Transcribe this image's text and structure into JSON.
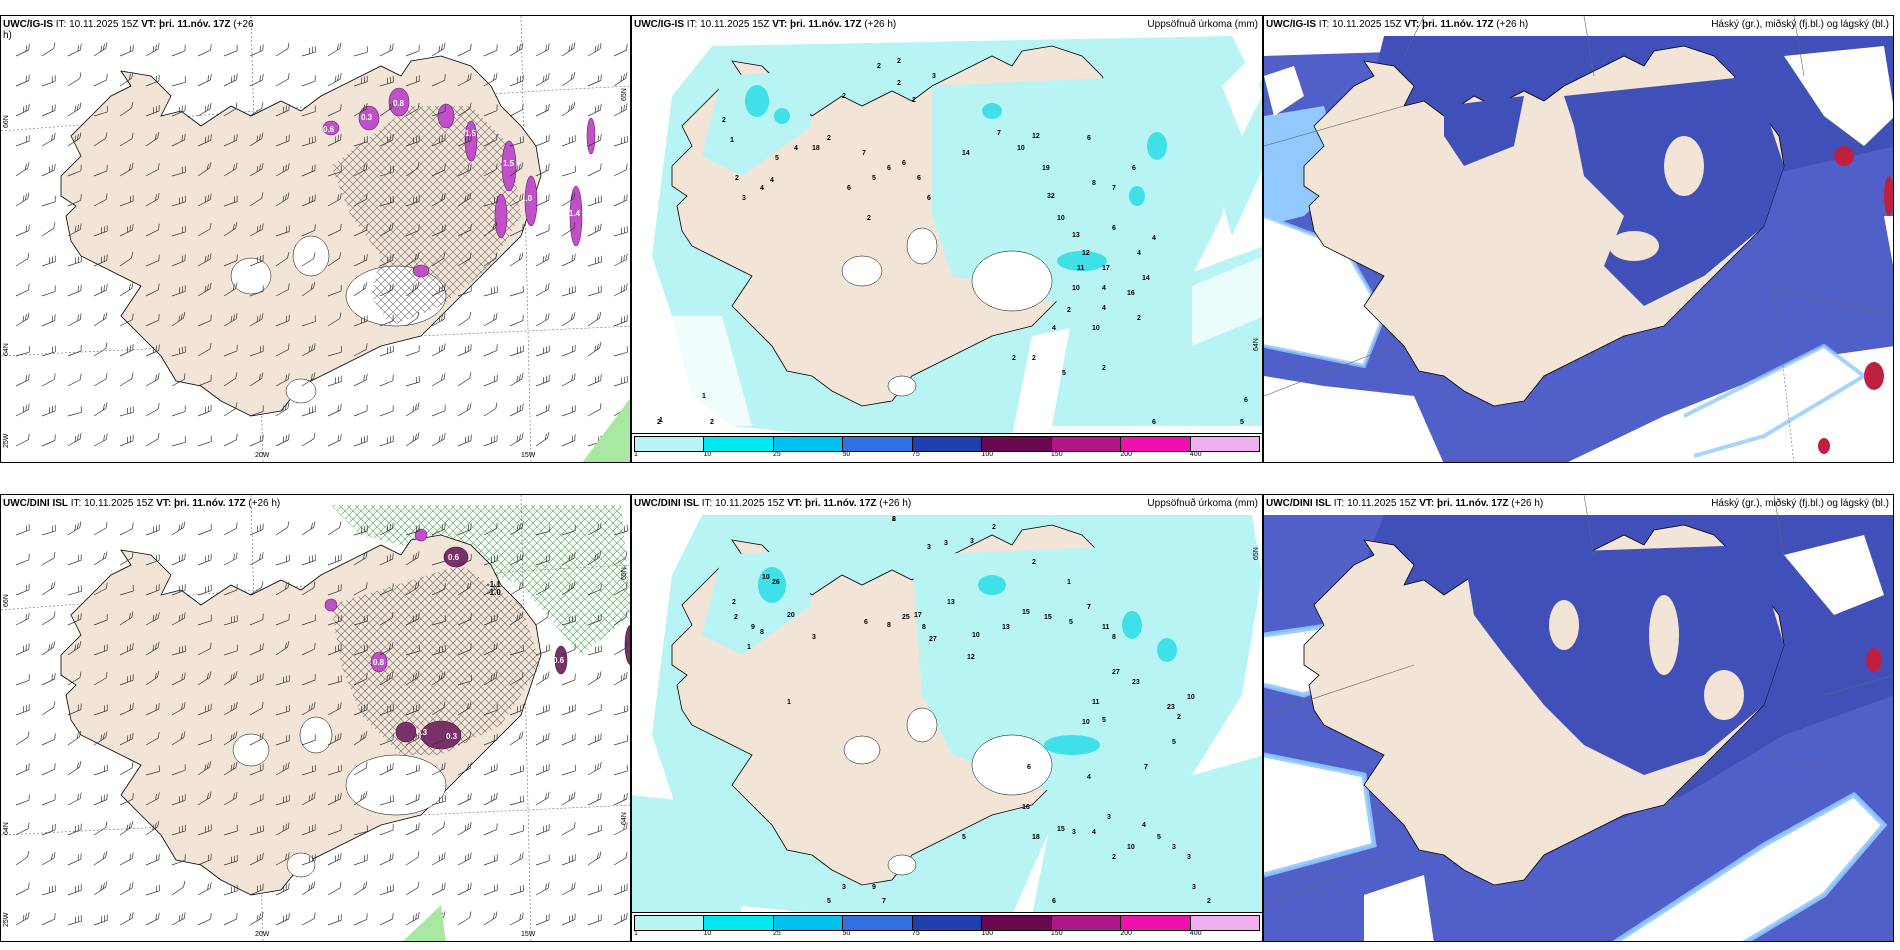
{
  "panels": {
    "top_wind": {
      "header_model": "UWC/IG-IS",
      "header_it": "IT: 10.11.2025 15Z",
      "header_vt_label": "VT:",
      "header_vt": "þri. 11.nóv. 17Z",
      "header_lead_a": "(+26",
      "header_lead_b": "h)",
      "lat_labels": [
        "66N",
        "64N",
        "25W"
      ],
      "lon_labels": [
        "20W",
        "15W"
      ],
      "lat_right": "65N",
      "precip_labels": [
        "0.6",
        "0.3",
        "0.8",
        "1.5",
        "1.5",
        "1.0",
        "1.4",
        "1.6",
        "2.0",
        "1.1"
      ]
    },
    "top_precip": {
      "header_model": "UWC/IG-IS",
      "header_it": "IT: 10.11.2025 15Z",
      "header_vt_label": "VT:",
      "header_vt": "þri. 11.nóv. 17Z",
      "header_lead": "(+26 h)",
      "header_right": "Uppsöfnuð úrkoma (mm)",
      "lat_right": "64N",
      "numbers": [
        "2",
        "2",
        "3",
        "2",
        "2",
        "2",
        "2",
        "2",
        "1",
        "2",
        "3",
        "5",
        "4",
        "4",
        "4",
        "18",
        "6",
        "7",
        "5",
        "6",
        "2",
        "6",
        "6",
        "6",
        "14",
        "7",
        "10",
        "12",
        "19",
        "32",
        "10",
        "13",
        "12",
        "17",
        "16",
        "2",
        "8",
        "6",
        "4",
        "6",
        "11",
        "7",
        "6",
        "4",
        "14",
        "10",
        "4",
        "4",
        "10",
        "2",
        "4",
        "2",
        "2",
        "1",
        "1",
        "2",
        "2",
        "6",
        "5",
        "3",
        "2",
        "5",
        "6"
      ]
    },
    "top_cloud": {
      "header_model": "UWC/IG-IS",
      "header_it": "IT: 10.11.2025 15Z",
      "header_vt_label": "VT:",
      "header_vt": "þri. 11.nóv. 17Z",
      "header_lead": "(+26 h)",
      "header_right": "Háský (gr.), miðský (fj.bl.) og lágský (bl.)"
    },
    "bottom_wind": {
      "header_model": "UWC/DINI ISL",
      "header_it": "IT: 10.11.2025 15Z",
      "header_vt_label": "VT:",
      "header_vt": "þri. 11.nóv. 17Z",
      "header_lead": "(+26 h)",
      "lat_labels": [
        "66N",
        "64N",
        "25W"
      ],
      "lon_labels": [
        "20W",
        "15W"
      ],
      "lat_right_a": "65N",
      "lat_right_b": "64N",
      "precip_labels": [
        "0.6",
        "-1.1",
        "-1.0",
        "0.9",
        "0.3",
        "0.6",
        "0.8"
      ]
    },
    "bottom_precip": {
      "header_model": "UWC/DINI ISL",
      "header_it": "IT: 10.11.2025 15Z",
      "header_vt_label": "VT:",
      "header_vt": "þri. 11.nóv. 17Z",
      "header_lead": "(+26 h)",
      "header_right": "Uppsöfnuð úrkoma (mm)",
      "lat_right": "65N",
      "numbers": [
        "2",
        "3",
        "3",
        "3",
        "2",
        "2",
        "1",
        "10",
        "26",
        "2",
        "20",
        "2",
        "9",
        "8",
        "3",
        "1",
        "1",
        "6",
        "8",
        "25",
        "17",
        "8",
        "27",
        "13",
        "10",
        "12",
        "13",
        "15",
        "15",
        "5",
        "7",
        "11",
        "8",
        "11",
        "5",
        "10",
        "27",
        "23",
        "23",
        "2",
        "10",
        "5",
        "7",
        "4",
        "6",
        "16",
        "18",
        "15",
        "3",
        "4",
        "3",
        "2",
        "10",
        "4",
        "5",
        "3",
        "3",
        "3",
        "2",
        "9",
        "7",
        "3",
        "5",
        "6",
        "5",
        "8"
      ]
    },
    "bottom_cloud": {
      "header_model": "UWC/DINI ISL",
      "header_it": "IT: 10.11.2025 15Z",
      "header_vt_label": "VT:",
      "header_vt": "þri. 11.nóv. 17Z",
      "header_lead": "(+26 h)",
      "header_right": "Háský (gr.), miðský (fj.bl.) og lágský (bl.)"
    }
  },
  "colorbar": {
    "colors": [
      "#b8f4f4",
      "#00e8f0",
      "#00c0f0",
      "#3070e0",
      "#2040b0",
      "#6a0850",
      "#b01888",
      "#f010b0",
      "#f0b0f0"
    ],
    "labels": [
      "1",
      "10",
      "25",
      "50",
      "75",
      "100",
      "150",
      "200",
      "400"
    ]
  },
  "colors": {
    "land": "#f2e4d6",
    "sea": "#ffffff",
    "precip_light": "#b8f4f4",
    "precip_mid": "#40e0e8",
    "cloud_high": "#5060c8",
    "cloud_mid": "#4050b8",
    "cloud_low": "#90c8ff",
    "magenta": "#b050c0",
    "dark_purple": "#7a3068"
  }
}
